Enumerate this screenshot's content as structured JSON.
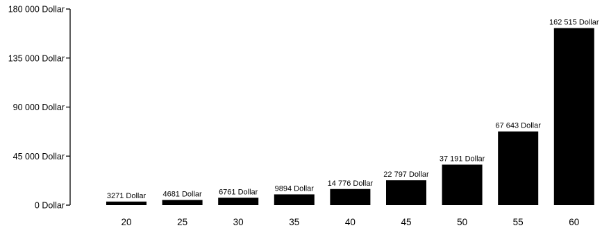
{
  "chart_data": {
    "type": "bar",
    "categories": [
      "20",
      "25",
      "30",
      "35",
      "40",
      "45",
      "50",
      "55",
      "60"
    ],
    "values": [
      3271,
      4681,
      6761,
      9894,
      14776,
      22797,
      37191,
      67643,
      162515
    ],
    "data_labels": [
      "3271 Dollar",
      "4681 Dollar",
      "6761 Dollar",
      "9894 Dollar",
      "14 776 Dollar",
      "22 797 Dollar",
      "37 191 Dollar",
      "67 643 Dollar",
      "162 515 Dollar"
    ],
    "y_ticks": [
      0,
      45000,
      90000,
      135000,
      180000
    ],
    "y_tick_labels": [
      "0 Dollar",
      "45 000 Dollar",
      "90 000 Dollar",
      "135 000 Dollar",
      "180 000 Dollar"
    ],
    "ylim": [
      0,
      180000
    ],
    "title": "",
    "xlabel": "",
    "ylabel": "",
    "grid": false,
    "bar_color": "#000000"
  }
}
